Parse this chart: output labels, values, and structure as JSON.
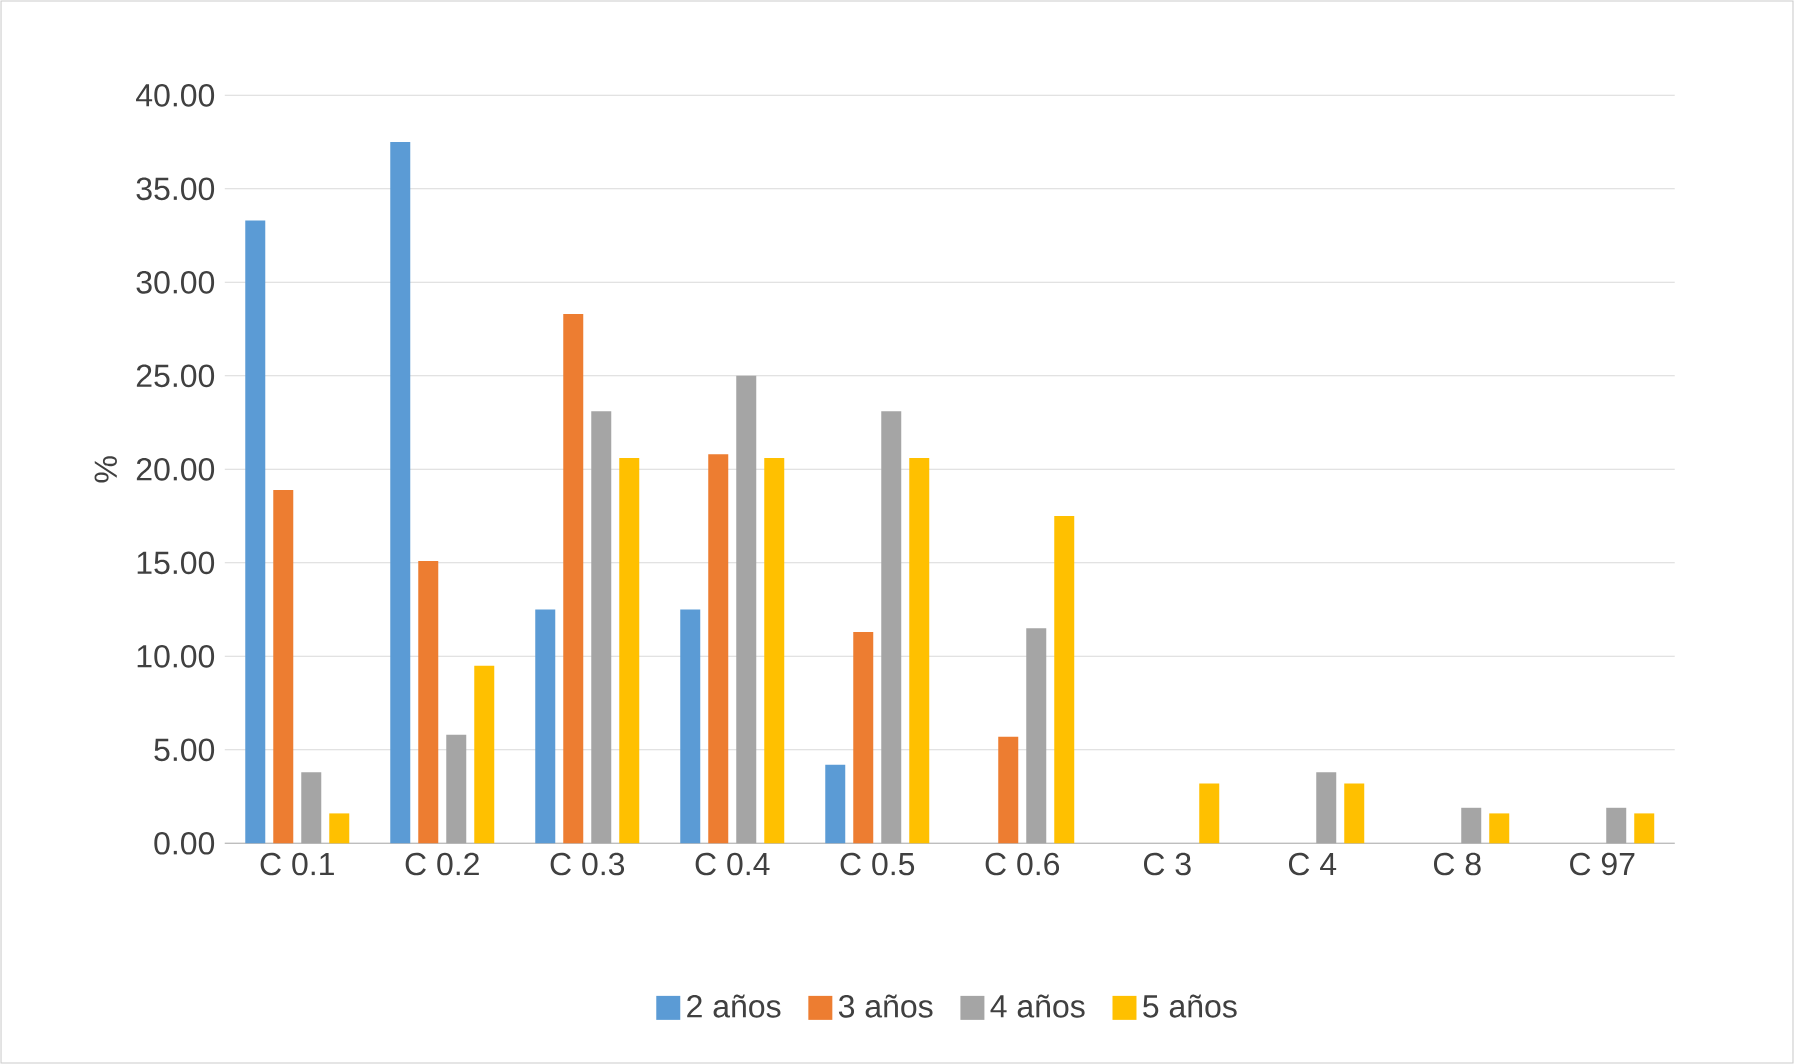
{
  "chart_data": {
    "type": "bar",
    "ylabel": "%",
    "categories": [
      "C 0.1",
      "C 0.2",
      "C 0.3",
      "C 0.4",
      "C 0.5",
      "C 0.6",
      "C 3",
      "C 4",
      "C 8",
      "C 97"
    ],
    "series": [
      {
        "name": "2 años",
        "color": "#5b9bd5",
        "values": [
          33.3,
          37.5,
          12.5,
          12.5,
          4.2,
          0,
          0,
          0,
          0,
          0
        ]
      },
      {
        "name": "3 años",
        "color": "#ed7d31",
        "values": [
          18.9,
          15.1,
          28.3,
          20.8,
          11.3,
          5.7,
          0,
          0,
          0,
          0
        ]
      },
      {
        "name": "4 años",
        "color": "#a5a5a5",
        "values": [
          3.8,
          5.8,
          23.1,
          25.0,
          23.1,
          11.5,
          0,
          3.8,
          1.9,
          1.9
        ]
      },
      {
        "name": "5 años",
        "color": "#ffc000",
        "values": [
          1.6,
          9.5,
          20.6,
          20.6,
          20.6,
          17.5,
          3.2,
          3.2,
          1.6,
          1.6
        ]
      }
    ],
    "ylim": [
      0,
      40
    ],
    "yticks": [
      {
        "value": 0,
        "label": "0.00"
      },
      {
        "value": 5,
        "label": "5.00"
      },
      {
        "value": 10,
        "label": "10.00"
      },
      {
        "value": 15,
        "label": "15.00"
      },
      {
        "value": 20,
        "label": "20.00"
      },
      {
        "value": 25,
        "label": "25.00"
      },
      {
        "value": 30,
        "label": "30.00"
      },
      {
        "value": 35,
        "label": "35.00"
      },
      {
        "value": 40,
        "label": "40.00"
      }
    ],
    "grid": "y",
    "legend": "bottom"
  }
}
